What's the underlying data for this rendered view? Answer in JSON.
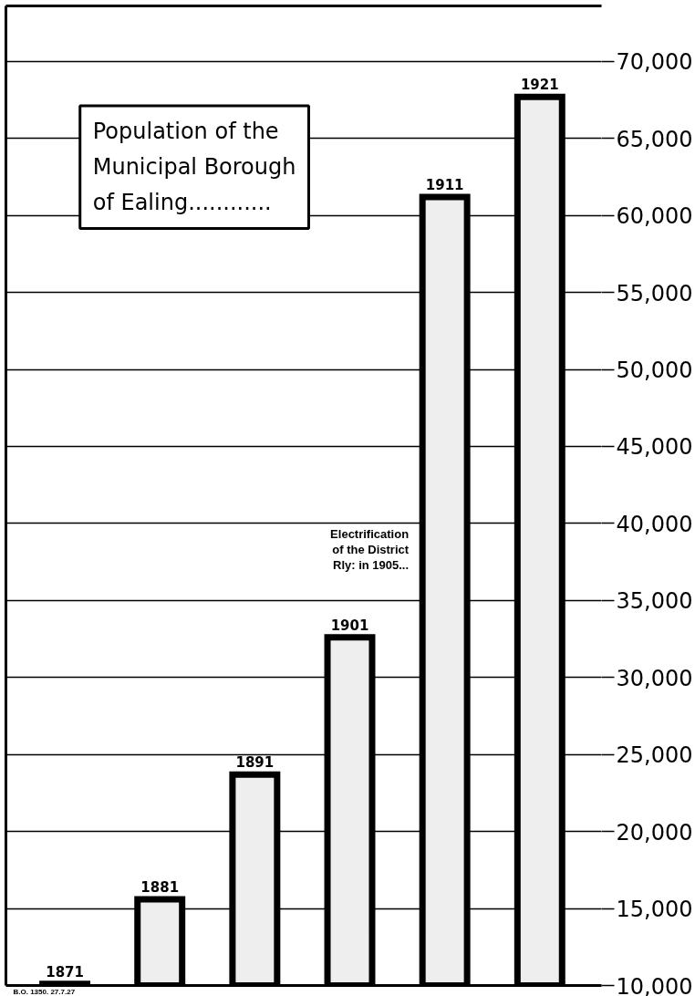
{
  "chart_data": {
    "type": "bar",
    "title": "Population of the\nMunicipal Borough\nof Ealing............",
    "annotations": [
      "Electrification\nof the District\nRly: in 1905...",
      "B.O. 1350. 27.7.27"
    ],
    "categories": [
      "1871",
      "1881",
      "1891",
      "1901",
      "1911",
      "1921"
    ],
    "series": [
      {
        "color": "#eeeeee",
        "values": [
          10100,
          15600,
          23700,
          32600,
          61200,
          67700
        ]
      }
    ],
    "ylim": [
      10000,
      73600
    ],
    "yticks": [
      {
        "value": 10000,
        "label": "10,000"
      },
      {
        "value": 15000,
        "label": "15,000"
      },
      {
        "value": 20000,
        "label": "20,000"
      },
      {
        "value": 25000,
        "label": "25,000"
      },
      {
        "value": 30000,
        "label": "30,000"
      },
      {
        "value": 35000,
        "label": "35,000"
      },
      {
        "value": 40000,
        "label": "40,000"
      },
      {
        "value": 45000,
        "label": "45,000"
      },
      {
        "value": 50000,
        "label": "50,000"
      },
      {
        "value": 55000,
        "label": "55,000"
      },
      {
        "value": 60000,
        "label": "60,000"
      },
      {
        "value": 65000,
        "label": "65,000"
      },
      {
        "value": 70000,
        "label": "70,000"
      }
    ],
    "grid": "y"
  }
}
